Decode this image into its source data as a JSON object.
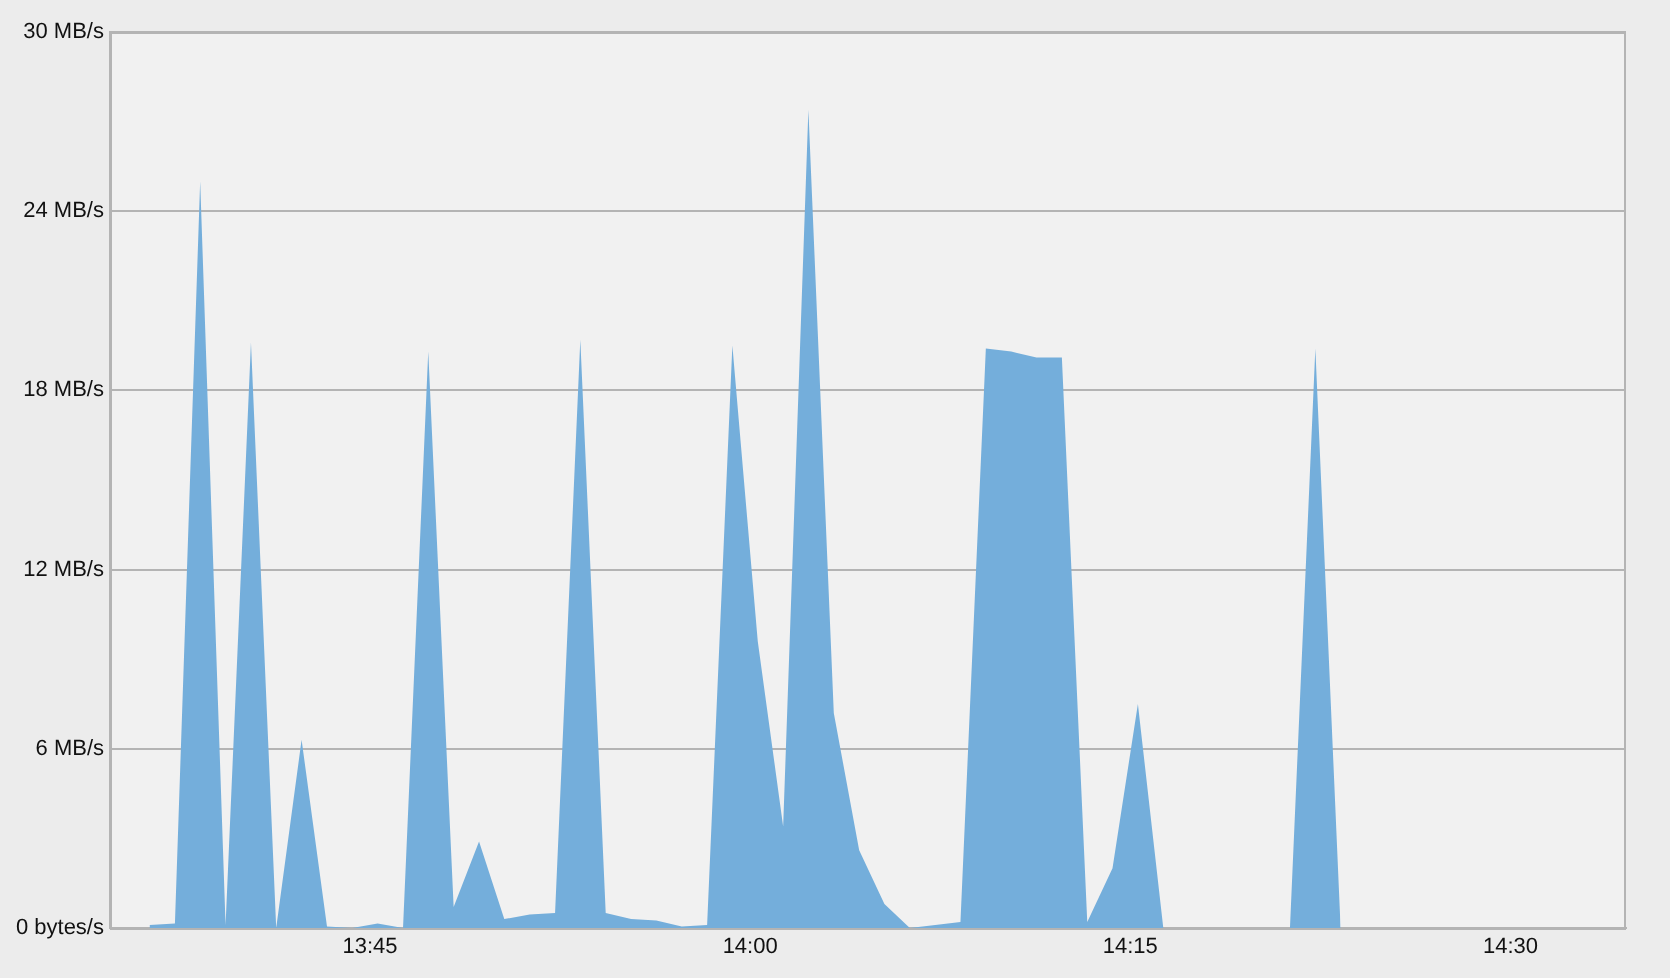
{
  "chart_data": {
    "type": "area",
    "x": [
      13.605,
      13.6217,
      13.6383,
      13.655,
      13.6717,
      13.6883,
      13.705,
      13.7217,
      13.7383,
      13.755,
      13.7717,
      13.7883,
      13.805,
      13.8217,
      13.8383,
      13.855,
      13.8717,
      13.8883,
      13.905,
      13.9217,
      13.9383,
      13.955,
      13.9717,
      13.9883,
      14.005,
      14.0217,
      14.0383,
      14.055,
      14.0717,
      14.0883,
      14.105,
      14.1217,
      14.1383,
      14.155,
      14.1717,
      14.1883,
      14.205,
      14.2217,
      14.2383,
      14.255,
      14.2717,
      14.2883,
      14.305,
      14.3217,
      14.3383,
      14.355,
      14.3717,
      14.3883
    ],
    "series": [
      {
        "color": "#74aedb",
        "values": [
          0.1,
          0.15,
          25.0,
          0.1,
          19.6,
          0,
          6.3,
          0.05,
          0,
          0.15,
          0,
          19.3,
          0.7,
          2.9,
          0.3,
          0.45,
          0.5,
          19.7,
          0.5,
          0.3,
          0.25,
          0.05,
          0.1,
          19.5,
          9.6,
          3.4,
          27.4,
          7.2,
          2.6,
          0.8,
          0,
          0.1,
          0.2,
          19.4,
          19.3,
          19.1,
          19.1,
          0.2,
          2.0,
          7.5,
          0,
          0,
          0,
          0,
          0,
          0,
          19.4,
          0
        ]
      }
    ],
    "xlim": [
      13.579,
      14.576
    ],
    "xticks": [
      {
        "value": 13.75,
        "label": "13:45"
      },
      {
        "value": 14,
        "label": "14:00"
      },
      {
        "value": 14.25,
        "label": "14:15"
      },
      {
        "value": 14.5,
        "label": "14:30"
      }
    ],
    "ylim": [
      0,
      30
    ],
    "yticks": [
      {
        "value": 0,
        "label": "0 bytes/s"
      },
      {
        "value": 6,
        "label": "6 MB/s"
      },
      {
        "value": 12,
        "label": "12 MB/s"
      },
      {
        "value": 18,
        "label": "18 MB/s"
      },
      {
        "value": 24,
        "label": "24 MB/s"
      },
      {
        "value": 30,
        "label": "30 MB/s"
      }
    ],
    "grid": "y"
  }
}
